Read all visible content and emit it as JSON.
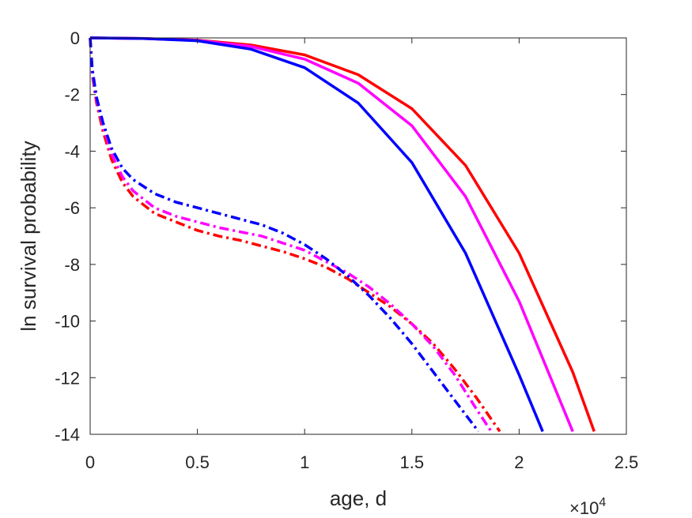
{
  "chart_data": {
    "type": "line",
    "xlabel": "age, d",
    "ylabel": "ln survival probability",
    "x_exponent": {
      "base": "×10",
      "power": "4"
    },
    "xlim": [
      0,
      25000
    ],
    "ylim": [
      -14,
      0
    ],
    "xticks": [
      0,
      5000,
      10000,
      15000,
      20000,
      25000
    ],
    "xtick_labels": [
      "0",
      "0.5",
      "1",
      "1.5",
      "2",
      "2.5"
    ],
    "yticks": [
      0,
      -2,
      -4,
      -6,
      -8,
      -10,
      -12,
      -14
    ],
    "ytick_labels": [
      "0",
      "-2",
      "-4",
      "-6",
      "-8",
      "-10",
      "-12",
      "-14"
    ],
    "grid": false,
    "legend": "none",
    "series": [
      {
        "color": "#ff0000",
        "style": "solid",
        "x": [
          0,
          2500,
          5000,
          7500,
          10000,
          12500,
          15000,
          17500,
          20000,
          22500,
          23500
        ],
        "y": [
          0,
          -0.02,
          -0.08,
          -0.25,
          -0.6,
          -1.3,
          -2.5,
          -4.5,
          -7.6,
          -11.8,
          -13.9
        ]
      },
      {
        "color": "#ff00ff",
        "style": "solid",
        "x": [
          0,
          2500,
          5000,
          7500,
          10000,
          12500,
          15000,
          17500,
          20000,
          22500
        ],
        "y": [
          0,
          -0.02,
          -0.09,
          -0.3,
          -0.75,
          -1.6,
          -3.1,
          -5.6,
          -9.3,
          -13.9
        ]
      },
      {
        "color": "#0000ff",
        "style": "solid",
        "x": [
          0,
          2500,
          5000,
          7500,
          10000,
          12500,
          15000,
          17500,
          20000,
          21100
        ],
        "y": [
          0,
          -0.02,
          -0.1,
          -0.4,
          -1.05,
          -2.3,
          -4.4,
          -7.6,
          -11.9,
          -13.9
        ]
      },
      {
        "color": "#ff0000",
        "style": "dashdot",
        "x": [
          0,
          100,
          300,
          600,
          1000,
          1500,
          2000,
          3000,
          4000,
          5000,
          6000,
          7000,
          8000,
          9000,
          10000,
          11000,
          12000,
          13000,
          14000,
          15000,
          16000,
          17000,
          18000,
          19100
        ],
        "y": [
          0,
          -1.3,
          -2.3,
          -3.3,
          -4.3,
          -5.1,
          -5.6,
          -6.2,
          -6.5,
          -6.8,
          -7.0,
          -7.15,
          -7.35,
          -7.55,
          -7.8,
          -8.1,
          -8.5,
          -9.0,
          -9.5,
          -10.1,
          -10.8,
          -11.7,
          -12.7,
          -13.9
        ]
      },
      {
        "color": "#ff00ff",
        "style": "dashdot",
        "x": [
          0,
          100,
          300,
          600,
          1000,
          1500,
          2000,
          3000,
          4000,
          5000,
          6000,
          7000,
          8000,
          9000,
          10000,
          11000,
          12000,
          13000,
          14000,
          15000,
          16000,
          17000,
          18000,
          18700
        ],
        "y": [
          0,
          -1.2,
          -2.2,
          -3.1,
          -4.1,
          -4.9,
          -5.4,
          -6.0,
          -6.3,
          -6.5,
          -6.7,
          -6.85,
          -7.0,
          -7.25,
          -7.5,
          -7.9,
          -8.3,
          -8.8,
          -9.4,
          -10.1,
          -10.9,
          -11.9,
          -13.1,
          -13.9
        ]
      },
      {
        "color": "#0000ff",
        "style": "dashdot",
        "x": [
          0,
          100,
          300,
          600,
          1000,
          1500,
          2000,
          3000,
          4000,
          5000,
          6000,
          7000,
          8000,
          9000,
          10000,
          11000,
          12000,
          13000,
          14000,
          15000,
          16000,
          17000,
          18100
        ],
        "y": [
          0,
          -1.1,
          -2.1,
          -3.0,
          -3.9,
          -4.6,
          -5.0,
          -5.5,
          -5.8,
          -6.0,
          -6.2,
          -6.4,
          -6.6,
          -6.9,
          -7.3,
          -7.8,
          -8.4,
          -9.1,
          -9.9,
          -10.8,
          -11.8,
          -12.8,
          -13.9
        ]
      }
    ]
  }
}
